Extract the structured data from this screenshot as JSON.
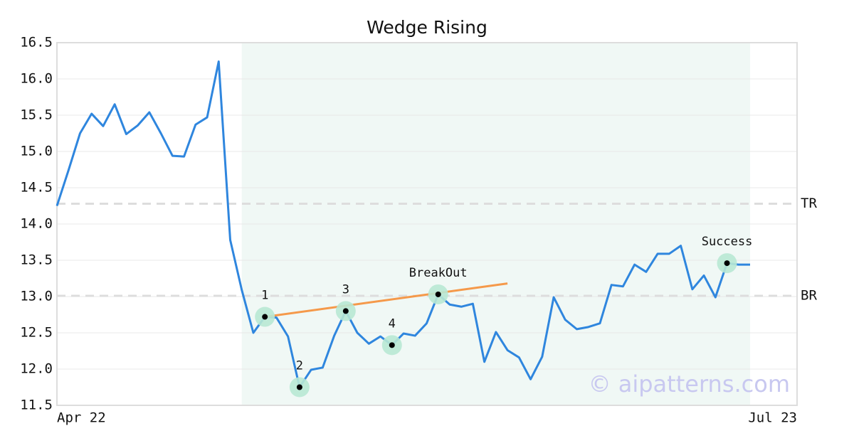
{
  "chart_data": {
    "type": "line",
    "title": "Wedge Rising",
    "x_axis_labels": [
      "Apr 22",
      "Jul 23"
    ],
    "ylim": [
      11.5,
      16.5
    ],
    "yticks": [
      11.5,
      {
        "value": 12,
        "label": "12.0"
      },
      12.5,
      {
        "value": 13,
        "label": "13.0"
      },
      13.5,
      {
        "value": 14,
        "label": "14.0"
      },
      14.5,
      {
        "value": 15,
        "label": "15.0"
      },
      15.5,
      {
        "value": 16,
        "label": "16.0"
      },
      16.5
    ],
    "grid": true,
    "series": [
      {
        "color": "#2f86de",
        "values": [
          14.25,
          14.74,
          15.25,
          15.52,
          15.35,
          15.65,
          15.24,
          15.36,
          15.54,
          15.25,
          14.94,
          14.93,
          15.37,
          15.47,
          16.24,
          13.78,
          13.09,
          12.5,
          12.72,
          12.71,
          12.45,
          11.75,
          11.99,
          12.02,
          12.46,
          12.8,
          12.5,
          12.35,
          12.45,
          12.33,
          12.49,
          12.46,
          12.63,
          13.03,
          12.89,
          12.86,
          12.9,
          12.1,
          12.51,
          12.26,
          12.16,
          11.86,
          12.17,
          12.99,
          12.68,
          12.55,
          12.58,
          12.63,
          13.16,
          13.14,
          13.44,
          13.34,
          13.59,
          13.59,
          13.7,
          13.1,
          13.29,
          12.99,
          13.46,
          13.44,
          13.44
        ]
      }
    ],
    "shade": {
      "start": 16,
      "end": 60,
      "color": "#f0f8f5"
    },
    "levels": [
      {
        "label": "TR",
        "value": 14.28
      },
      {
        "label": "BR",
        "value": 13.01
      }
    ],
    "trend_line": {
      "x": [
        18,
        39
      ],
      "values": [
        12.72,
        13.18
      ],
      "color": "#f5994a"
    },
    "annotations": [
      {
        "label": "1",
        "index": 18
      },
      {
        "label": "2",
        "index": 21
      },
      {
        "label": "3",
        "index": 25
      },
      {
        "label": "4",
        "index": 29
      },
      {
        "label": "BreakOut",
        "index": 33
      },
      {
        "label": "Success",
        "index": 58
      }
    ],
    "watermark": "© aipatterns.com"
  }
}
